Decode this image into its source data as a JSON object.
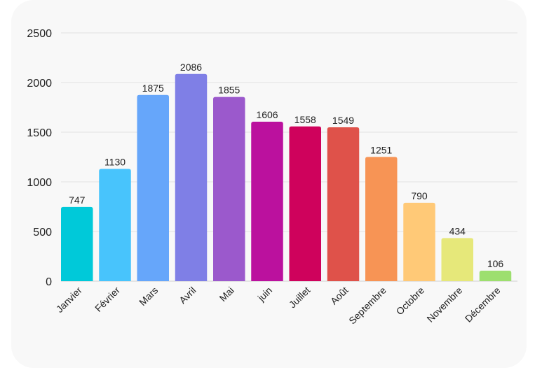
{
  "chart_data": {
    "type": "bar",
    "categories": [
      "Janvier",
      "Février",
      "Mars",
      "Avril",
      "Mai",
      "juin",
      "Juillet",
      "Août",
      "Septembre",
      "Octobre",
      "Novembre",
      "Décembre"
    ],
    "values": [
      747,
      1130,
      1875,
      2086,
      1855,
      1606,
      1558,
      1549,
      1251,
      790,
      434,
      106
    ],
    "colors": [
      "#00c9d9",
      "#48c4fc",
      "#66a6fa",
      "#7f7fe6",
      "#9b59cc",
      "#bb119e",
      "#cf025c",
      "#df524a",
      "#f79455",
      "#ffc977",
      "#e6e87a",
      "#9ddf6f"
    ],
    "ylim": [
      0,
      2500
    ],
    "yticks": [
      0,
      500,
      1000,
      1500,
      2000,
      2500
    ],
    "grid": true,
    "data_labels": true,
    "title": "",
    "xlabel": "",
    "ylabel": ""
  }
}
